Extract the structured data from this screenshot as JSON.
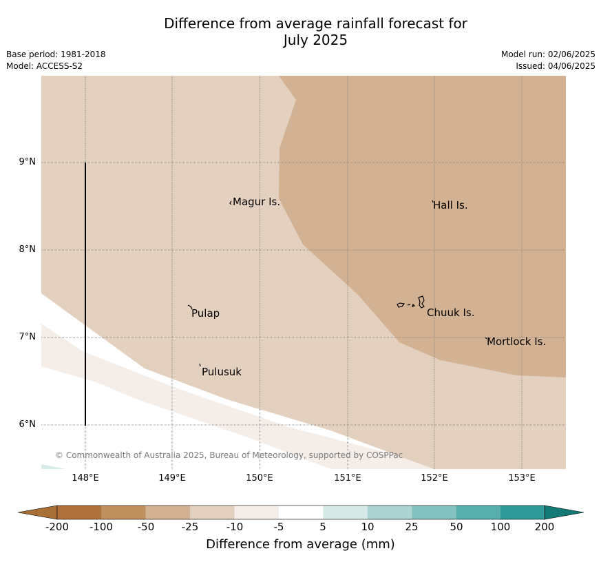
{
  "header": {
    "title_line1": "Difference from average rainfall forecast for",
    "title_line2": "July 2025",
    "base_period": "Base period: 1981-2018",
    "model": "Model: ACCESS-S2",
    "model_run": "Model run: 02/06/2025",
    "issued": "Issued: 04/06/2025"
  },
  "map": {
    "lat_labels": [
      "9°N",
      "8°N",
      "7°N",
      "6°N"
    ],
    "lon_labels": [
      "148°E",
      "149°E",
      "150°E",
      "151°E",
      "152°E",
      "153°E"
    ],
    "places": [
      "Magur Is.",
      "Hall Is.",
      "Pulap",
      "Chuuk Is.",
      "Mortlock Is.",
      "Pulusuk"
    ],
    "copyright": "© Commonwealth of Australia 2025, Bureau of Meteorology, supported by COSPPac",
    "colors": {
      "c_-25_-50": "#d2b292",
      "c_-10_-25": "#e3d0be",
      "c_-5_-10": "#f4ede8",
      "c_-5_5": "#ffffff",
      "c_5_10": "#d6eae8"
    }
  },
  "legend": {
    "title": "Difference from average (mm)",
    "ticks": [
      "-200",
      "-100",
      "-50",
      "-25",
      "-10",
      "-5",
      "5",
      "10",
      "25",
      "50",
      "100",
      "200"
    ],
    "colors": [
      "#a86f37",
      "#b0733d",
      "#c0915f",
      "#d2b292",
      "#e3d0be",
      "#f4ede8",
      "#ffffff",
      "#d6eae8",
      "#acd4d2",
      "#82c1bf",
      "#58aead",
      "#2f9a98",
      "#137a76"
    ]
  }
}
